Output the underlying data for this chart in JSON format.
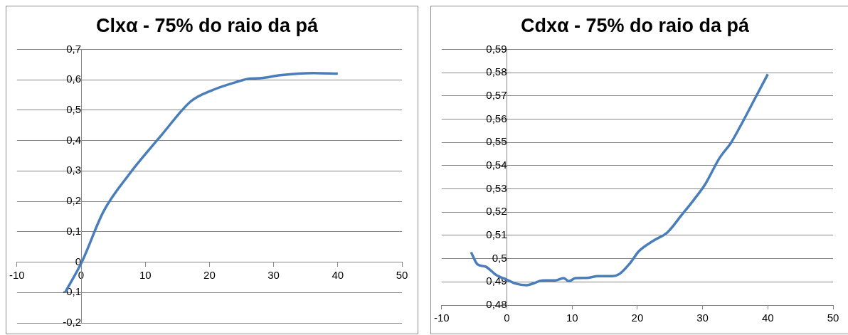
{
  "chart_data": [
    {
      "type": "line",
      "title": "Clxα - 75% do raio da pá",
      "xlim": [
        -10,
        50
      ],
      "ylim": [
        -0.2,
        0.7
      ],
      "xticks": [
        -10,
        0,
        10,
        20,
        30,
        40,
        50
      ],
      "yticks": [
        {
          "value": -0.2,
          "label": "-0,2"
        },
        {
          "value": -0.1,
          "label": "-0,1"
        },
        0,
        {
          "value": 0.1,
          "label": "0,1"
        },
        {
          "value": 0.2,
          "label": "0,2"
        },
        {
          "value": 0.3,
          "label": "0,3"
        },
        {
          "value": 0.4,
          "label": "0,4"
        },
        {
          "value": 0.5,
          "label": "0,5"
        },
        {
          "value": 0.6,
          "label": "0,6"
        },
        {
          "value": 0.7,
          "label": "0,7"
        }
      ],
      "grid": "y",
      "marker": "none",
      "line_style": "solid",
      "series": [
        {
          "color": "#4a7ebb",
          "x": [
            -2.5,
            0.1,
            3.5,
            7.6,
            10.2,
            12.6,
            17.1,
            20.6,
            24.1,
            26.3,
            27.8,
            31,
            36.2,
            40
          ],
          "values": [
            -0.1,
            0,
            0.167,
            0.292,
            0.36,
            0.42,
            0.529,
            0.567,
            0.592,
            0.604,
            0.605,
            0.615,
            0.622,
            0.62
          ]
        }
      ]
    },
    {
      "type": "line",
      "title": "Cdxα - 75% do raio da pá",
      "xlim": [
        -10,
        50
      ],
      "ylim": [
        0.48,
        0.59
      ],
      "xticks": [
        -10,
        0,
        10,
        20,
        30,
        40,
        50
      ],
      "yticks": [
        {
          "value": 0.48,
          "label": "0,48"
        },
        {
          "value": 0.49,
          "label": "0,49"
        },
        {
          "value": 0.5,
          "label": "0,5"
        },
        {
          "value": 0.51,
          "label": "0,51"
        },
        {
          "value": 0.52,
          "label": "0,52"
        },
        {
          "value": 0.53,
          "label": "0,53"
        },
        {
          "value": 0.54,
          "label": "0,54"
        },
        {
          "value": 0.55,
          "label": "0,55"
        },
        {
          "value": 0.56,
          "label": "0,56"
        },
        {
          "value": 0.57,
          "label": "0,57"
        },
        {
          "value": 0.58,
          "label": "0,58"
        },
        {
          "value": 0.59,
          "label": "0,59"
        }
      ],
      "grid": "y",
      "marker": "none",
      "line_style": "solid",
      "series": [
        {
          "color": "#4a7ebb",
          "x": [
            -5.5,
            -4.5,
            -3.3,
            -1.7,
            0,
            1.4,
            3,
            5.6,
            7.4,
            8.7,
            9.5,
            10.5,
            12.2,
            14,
            16.2,
            17.3,
            18.9,
            20.2,
            22.4,
            24.6,
            26.8,
            28.6,
            30.4,
            32.6,
            34.3,
            35.7,
            38.3,
            40
          ],
          "values": [
            0.5028,
            0.4975,
            0.4966,
            0.4931,
            0.4909,
            0.4892,
            0.4886,
            0.4906,
            0.4906,
            0.4916,
            0.4903,
            0.4916,
            0.4917,
            0.4925,
            0.4925,
            0.4935,
            0.4981,
            0.5031,
            0.5076,
            0.5113,
            0.5188,
            0.5251,
            0.532,
            0.5433,
            0.5496,
            0.5565,
            0.5703,
            0.5793
          ]
        }
      ]
    }
  ]
}
